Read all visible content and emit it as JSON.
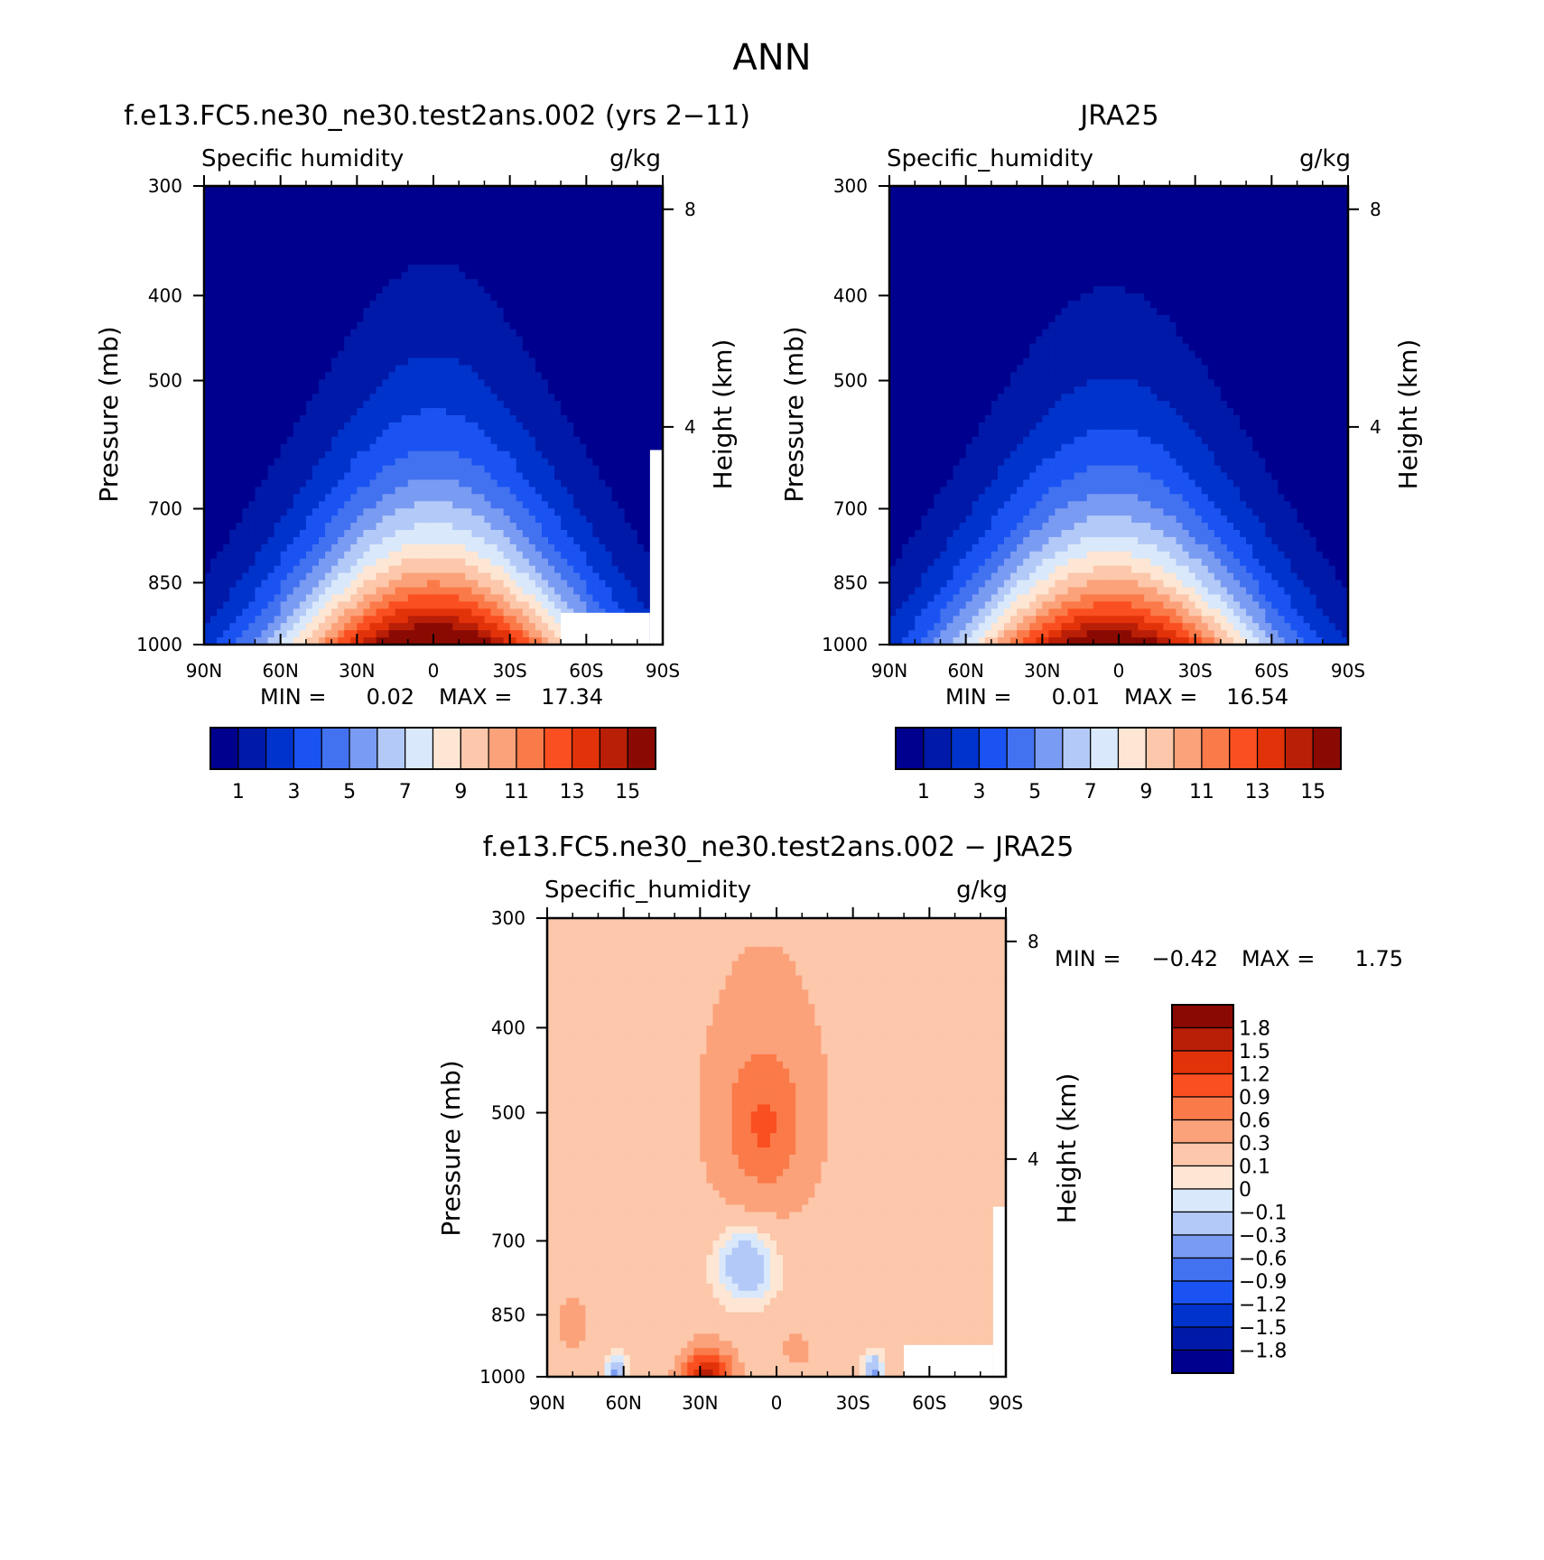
{
  "figure": {
    "title": "ANN"
  },
  "colors": {
    "abs": [
      "#00008e",
      "#0019a8",
      "#0033cc",
      "#1a53f2",
      "#4372f0",
      "#7a9bf2",
      "#b3c9f7",
      "#d9e8fb",
      "#fde6d3",
      "#fcc7aa",
      "#fba27b",
      "#fb7a49",
      "#fa4f20",
      "#e2320a",
      "#b91e07",
      "#8a0a03"
    ],
    "diff": [
      "#00008e",
      "#0019a8",
      "#0033cc",
      "#1a53f2",
      "#4372f0",
      "#7a9bf2",
      "#b3c9f7",
      "#d9e8fb",
      "#fde6d3",
      "#fcc7aa",
      "#fba27b",
      "#fb7a49",
      "#fa4f20",
      "#e2320a",
      "#b91e07",
      "#8a0a03"
    ]
  },
  "chart_data": [
    {
      "type": "heatmap",
      "title": "f.e13.FC5.ne30_ne30.test2ans.002 (yrs 2−11)",
      "left_label": "Specific humidity",
      "right_label": "g/kg",
      "ylabel": "Pressure (mb)",
      "y2label": "Height (km)",
      "x_ticks": [
        "90N",
        "60N",
        "30N",
        "0",
        "30S",
        "60S",
        "90S"
      ],
      "x_tick_values": [
        90,
        60,
        30,
        0,
        -30,
        -60,
        -90
      ],
      "y_ticks": [
        "300",
        "400",
        "500",
        "700",
        "850",
        "1000"
      ],
      "y_tick_values": [
        300,
        400,
        500,
        700,
        850,
        1000
      ],
      "y2_ticks": [
        "8",
        "4"
      ],
      "y2_tick_values": [
        8,
        4
      ],
      "stats": {
        "min_label": "MIN =",
        "min": "0.02",
        "max_label": "MAX =",
        "max": "17.34"
      },
      "peak": 17.34,
      "peak_lat": 0,
      "height_scale": 1.0,
      "south_mask": true,
      "colorbar": {
        "orientation": "horizontal",
        "levels": [
          1,
          2,
          3,
          4,
          5,
          6,
          7,
          8,
          9,
          10,
          11,
          12,
          13,
          14,
          15
        ],
        "labels": [
          "1",
          "3",
          "5",
          "7",
          "9",
          "11",
          "13",
          "15"
        ]
      }
    },
    {
      "type": "heatmap",
      "title": "JRA25",
      "left_label": "Specific_humidity",
      "right_label": "g/kg",
      "ylabel": "Pressure (mb)",
      "y2label": "Height (km)",
      "x_ticks": [
        "90N",
        "60N",
        "30N",
        "0",
        "30S",
        "60S",
        "90S"
      ],
      "x_tick_values": [
        90,
        60,
        30,
        0,
        -30,
        -60,
        -90
      ],
      "y_ticks": [
        "300",
        "400",
        "500",
        "700",
        "850",
        "1000"
      ],
      "y_tick_values": [
        300,
        400,
        500,
        700,
        850,
        1000
      ],
      "y2_ticks": [
        "8",
        "4"
      ],
      "y2_tick_values": [
        8,
        4
      ],
      "stats": {
        "min_label": "MIN =",
        "min": "0.01",
        "max_label": "MAX =",
        "max": "16.54"
      },
      "peak": 16.54,
      "peak_lat": 3,
      "height_scale": 0.95,
      "south_mask": false,
      "colorbar": {
        "orientation": "horizontal",
        "levels": [
          1,
          2,
          3,
          4,
          5,
          6,
          7,
          8,
          9,
          10,
          11,
          12,
          13,
          14,
          15
        ],
        "labels": [
          "1",
          "3",
          "5",
          "7",
          "9",
          "11",
          "13",
          "15"
        ]
      }
    },
    {
      "type": "heatmap",
      "title": "f.e13.FC5.ne30_ne30.test2ans.002 − JRA25",
      "left_label": "Specific_humidity",
      "right_label": "g/kg",
      "ylabel": "Pressure (mb)",
      "y2label": "Height (km)",
      "x_ticks": [
        "90N",
        "60N",
        "30N",
        "0",
        "30S",
        "60S",
        "90S"
      ],
      "x_tick_values": [
        90,
        60,
        30,
        0,
        -30,
        -60,
        -90
      ],
      "y_ticks": [
        "300",
        "400",
        "500",
        "700",
        "850",
        "1000"
      ],
      "y_tick_values": [
        300,
        400,
        500,
        700,
        850,
        1000
      ],
      "y2_ticks": [
        "8",
        "4"
      ],
      "y2_tick_values": [
        8,
        4
      ],
      "stats": {
        "min_label": "MIN =",
        "min": "−0.42",
        "max_label": "MAX =",
        "max": "1.75"
      },
      "colorbar": {
        "orientation": "vertical",
        "levels": [
          -1.8,
          -1.5,
          -1.2,
          -0.9,
          -0.6,
          -0.3,
          -0.1,
          0,
          0.1,
          0.3,
          0.6,
          0.9,
          1.2,
          1.5,
          1.8
        ],
        "labels": [
          "1.8",
          "1.5",
          "1.2",
          "0.9",
          "0.6",
          "0.3",
          "0.1",
          "0",
          "−0.1",
          "−0.3",
          "−0.6",
          "−0.9",
          "−1.2",
          "−1.5",
          "−1.8"
        ]
      }
    }
  ]
}
